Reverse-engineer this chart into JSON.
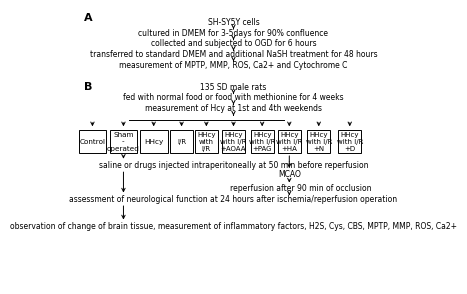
{
  "background_color": "#ffffff",
  "section_A_label": "A",
  "section_B_label": "B",
  "A_steps": [
    "SH-SY5Y cells",
    "cultured in DMEM for 3-5days for 90% confluence",
    "collected and subjected to OGD for 6 hours",
    "transferred to standard DMEM and additional NaSH treatment for 48 hours",
    "measurement of MPTP, MMP, ROS, Ca2+ and Cytochrome C"
  ],
  "B_top_steps": [
    "135 SD male rats",
    "fed with normal food or food with methionine for 4 weeks",
    "measurement of Hcy at 1st and 4th weekends"
  ],
  "boxes_left": [
    "Control",
    "Sham\n-\noperated",
    "HHcy"
  ],
  "boxes_right": [
    "I/R",
    "HHcy\nwith\nI/R",
    "HHcy\nwith I/R\n+AOAA",
    "HHcy\nwith I/R\n+PAG",
    "HHcy\nwith I/R\n+HA",
    "HHcy\nwith I/R\n+N",
    "HHcy\nwith I/R\n+D"
  ],
  "B_bottom_left": [
    "saline or drugs injected intraperitoneally at 50 min before reperfusion",
    "assessment of neurological function at 24 hours after ischemia/reperfusion operation",
    "observation of change of brain tissue, measurement of inflammatory factors, H2S, Cys, CBS, MPTP, MMP, ROS, Ca2+"
  ],
  "B_bottom_right": [
    "MCAO",
    "reperfusion after 90 min of occlusion"
  ],
  "arrow_color": "#000000",
  "box_edge_color": "#000000",
  "text_color": "#000000",
  "font_size": 5.5,
  "label_font_size": 8
}
